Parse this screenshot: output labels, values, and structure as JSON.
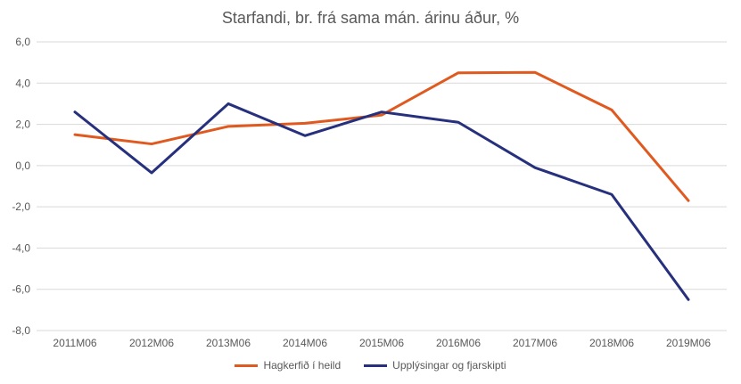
{
  "chart_data": {
    "type": "line",
    "title": "Starfandi, br. frá sama mán. árinu áður, %",
    "xlabel": "",
    "ylabel": "",
    "categories": [
      "2011M06",
      "2012M06",
      "2013M06",
      "2014M06",
      "2015M06",
      "2016M06",
      "2017M06",
      "2018M06",
      "2019M06"
    ],
    "ylim": [
      -8,
      6
    ],
    "yticks": [
      -8,
      -6,
      -4,
      -2,
      0,
      2,
      4,
      6
    ],
    "ytick_labels": [
      "-8,0",
      "-6,0",
      "-4,0",
      "-2,0",
      "0,0",
      "2,0",
      "4,0",
      "6,0"
    ],
    "grid": true,
    "legend_position": "bottom",
    "series": [
      {
        "name": "Hagkerfið í heild",
        "color": "#e05a1f",
        "values": [
          1.5,
          1.05,
          1.9,
          2.05,
          2.45,
          4.5,
          4.52,
          2.7,
          -1.7
        ]
      },
      {
        "name": "Upplýsingar og fjarskipti",
        "color": "#26307d",
        "values": [
          2.6,
          -0.35,
          3.0,
          1.45,
          2.6,
          2.1,
          -0.1,
          -1.4,
          -6.5
        ]
      }
    ]
  }
}
